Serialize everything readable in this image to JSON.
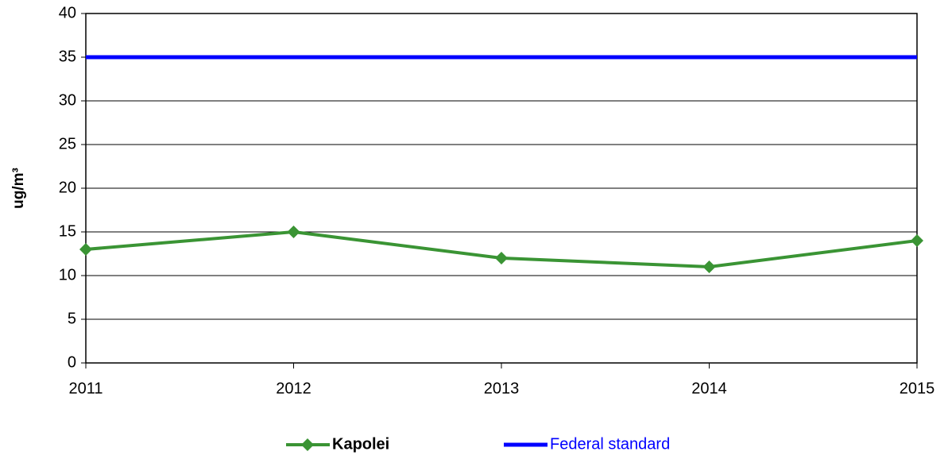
{
  "chart_data": {
    "type": "line",
    "y_label": "ug/m³",
    "x": [
      2011,
      2012,
      2013,
      2014,
      2015
    ],
    "xlim": [
      2011,
      2015
    ],
    "xticks": [
      2011,
      2012,
      2013,
      2014,
      2015
    ],
    "ylim": [
      0,
      40
    ],
    "yticks": [
      0,
      5,
      10,
      15,
      20,
      25,
      30,
      35,
      40
    ],
    "grid": true,
    "legend": "bottom",
    "series": [
      {
        "name": "Kapolei",
        "color": "#3a9434",
        "marker": "diamond",
        "values": [
          13,
          15,
          12,
          11,
          14
        ]
      },
      {
        "name": "Federal standard",
        "color": "#0000ff",
        "values": [
          35,
          35,
          35,
          35,
          35
        ]
      }
    ]
  }
}
